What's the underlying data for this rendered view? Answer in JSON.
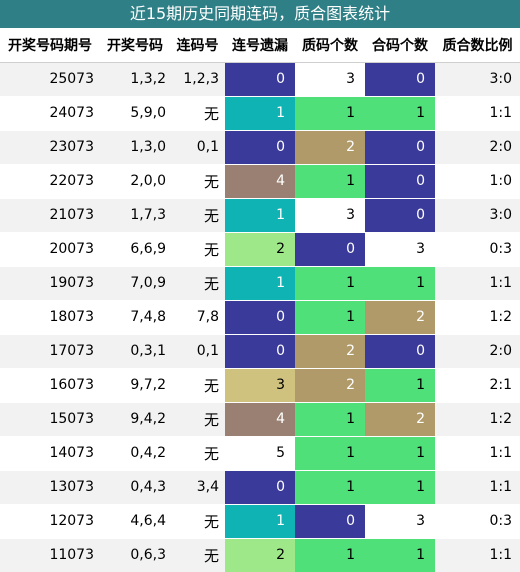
{
  "title": "近15期历史同期连码，质合图表统计",
  "headers": [
    "开奖号码期号",
    "开奖号码",
    "连码号",
    "连号遗漏",
    "质码个数",
    "合码个数",
    "质合数比例"
  ],
  "rows": [
    {
      "period": "25073",
      "prize": "1,3,2",
      "link": "1,2,3",
      "miss": "0",
      "prime": "3",
      "composite": "0",
      "ratio": "3:0"
    },
    {
      "period": "24073",
      "prize": "5,9,0",
      "link": "无",
      "miss": "1",
      "prime": "1",
      "composite": "1",
      "ratio": "1:1"
    },
    {
      "period": "23073",
      "prize": "1,3,0",
      "link": "0,1",
      "miss": "0",
      "prime": "2",
      "composite": "0",
      "ratio": "2:0"
    },
    {
      "period": "22073",
      "prize": "2,0,0",
      "link": "无",
      "miss": "4",
      "prime": "1",
      "composite": "0",
      "ratio": "1:0"
    },
    {
      "period": "21073",
      "prize": "1,7,3",
      "link": "无",
      "miss": "1",
      "prime": "3",
      "composite": "0",
      "ratio": "3:0"
    },
    {
      "period": "20073",
      "prize": "6,6,9",
      "link": "无",
      "miss": "2",
      "prime": "0",
      "composite": "3",
      "ratio": "0:3"
    },
    {
      "period": "19073",
      "prize": "7,0,9",
      "link": "无",
      "miss": "1",
      "prime": "1",
      "composite": "1",
      "ratio": "1:1"
    },
    {
      "period": "18073",
      "prize": "7,4,8",
      "link": "7,8",
      "miss": "0",
      "prime": "1",
      "composite": "2",
      "ratio": "1:2"
    },
    {
      "period": "17073",
      "prize": "0,3,1",
      "link": "0,1",
      "miss": "0",
      "prime": "2",
      "composite": "0",
      "ratio": "2:0"
    },
    {
      "period": "16073",
      "prize": "9,7,2",
      "link": "无",
      "miss": "3",
      "prime": "2",
      "composite": "1",
      "ratio": "2:1"
    },
    {
      "period": "15073",
      "prize": "9,4,2",
      "link": "无",
      "miss": "4",
      "prime": "1",
      "composite": "2",
      "ratio": "1:2"
    },
    {
      "period": "14073",
      "prize": "0,4,2",
      "link": "无",
      "miss": "5",
      "prime": "1",
      "composite": "1",
      "ratio": "1:1"
    },
    {
      "period": "13073",
      "prize": "0,4,3",
      "link": "3,4",
      "miss": "0",
      "prime": "1",
      "composite": "1",
      "ratio": "1:1"
    },
    {
      "period": "12073",
      "prize": "4,6,4",
      "link": "无",
      "miss": "1",
      "prime": "0",
      "composite": "3",
      "ratio": "0:3"
    },
    {
      "period": "11073",
      "prize": "0,6,3",
      "link": "无",
      "miss": "2",
      "prime": "1",
      "composite": "1",
      "ratio": "1:1"
    }
  ]
}
